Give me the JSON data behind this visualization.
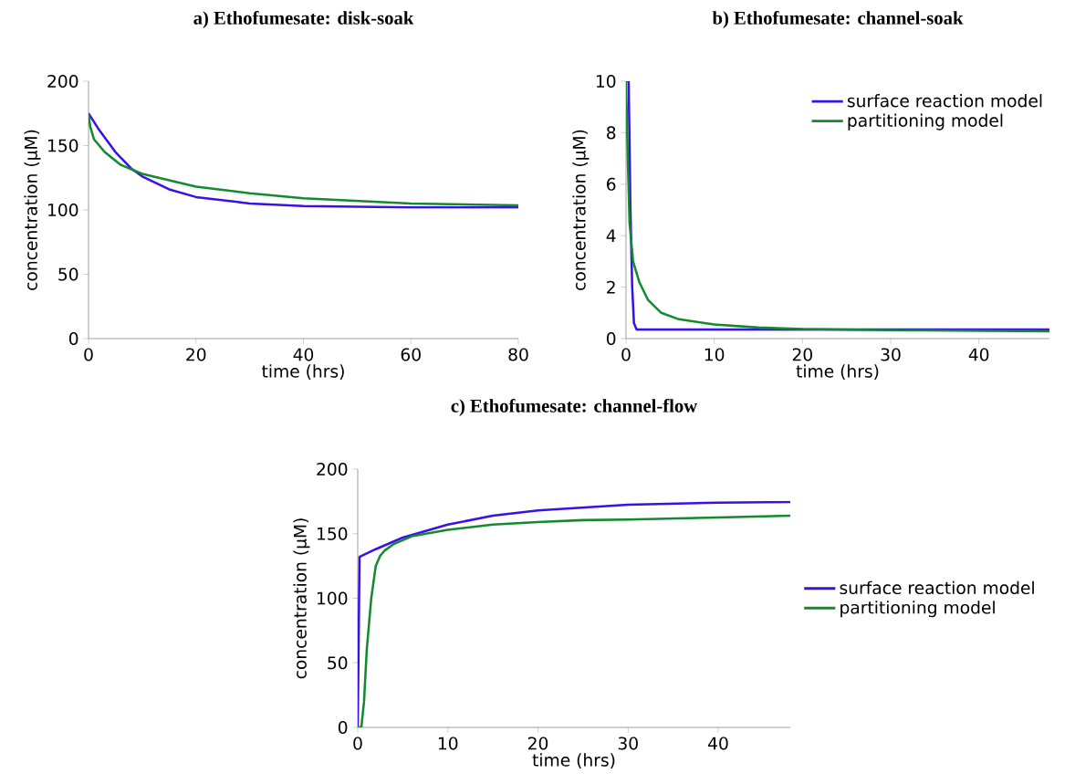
{
  "chart_data": [
    {
      "type": "line",
      "title": "a) Ethofumesate: disk-soak",
      "xlabel": "time (hrs)",
      "ylabel": "concentration (µM)",
      "xlim": [
        0,
        80
      ],
      "ylim": [
        0,
        200
      ],
      "xticks": [
        0,
        20,
        40,
        60,
        80
      ],
      "yticks": [
        0,
        50,
        100,
        150,
        200
      ],
      "legend": false,
      "series": [
        {
          "color": "#3a10e8",
          "x": [
            0,
            2,
            5,
            8,
            10,
            15,
            20,
            30,
            40,
            60,
            80
          ],
          "values": [
            175,
            162,
            145,
            132,
            126,
            116,
            110,
            105,
            103,
            102,
            102
          ]
        },
        {
          "color": "#138a2e",
          "x": [
            0,
            0.3,
            1,
            3,
            6,
            10,
            20,
            30,
            40,
            60,
            80
          ],
          "values": [
            175,
            165,
            155,
            145,
            135,
            128,
            118,
            113,
            109,
            105,
            103.5
          ]
        }
      ]
    },
    {
      "type": "line",
      "title": "b) Ethofumesate: channel-soak",
      "xlabel": "time (hrs)",
      "ylabel": "concentration (µM)",
      "xlim": [
        0,
        48
      ],
      "ylim": [
        0,
        10
      ],
      "xticks": [
        0,
        10,
        20,
        30,
        40
      ],
      "yticks": [
        0,
        2,
        4,
        6,
        8,
        10
      ],
      "legend": "top right",
      "series": [
        {
          "name": "surface reaction model",
          "color": "#3a10e8",
          "x": [
            0,
            0.3,
            0.5,
            0.7,
            0.9,
            1.2,
            48
          ],
          "values": [
            10,
            10,
            5,
            2,
            0.6,
            0.35,
            0.35
          ]
        },
        {
          "name": "partitioning model",
          "color": "#138a2e",
          "x": [
            0,
            0.2,
            0.4,
            0.8,
            1.5,
            2.5,
            4,
            6,
            10,
            15,
            20,
            30,
            48
          ],
          "values": [
            10,
            7,
            4.5,
            3,
            2.2,
            1.5,
            1.0,
            0.75,
            0.55,
            0.43,
            0.37,
            0.33,
            0.28
          ]
        }
      ]
    },
    {
      "type": "line",
      "title": "c) Ethofumesate: channel-flow",
      "xlabel": "time (hrs)",
      "ylabel": "concentration (µM)",
      "xlim": [
        0,
        48
      ],
      "ylim": [
        0,
        200
      ],
      "xticks": [
        0,
        10,
        20,
        30,
        40
      ],
      "yticks": [
        0,
        50,
        100,
        150,
        200
      ],
      "legend": "right",
      "series": [
        {
          "name": "surface reaction model",
          "color": "#3a10e8",
          "x": [
            0,
            0.2,
            2,
            5,
            10,
            15,
            20,
            30,
            40,
            48
          ],
          "values": [
            0,
            132,
            138,
            147,
            157,
            164,
            168,
            172.5,
            174,
            174.5
          ]
        },
        {
          "name": "partitioning model",
          "color": "#138a2e",
          "x": [
            0,
            0.4,
            0.7,
            1,
            1.5,
            2,
            2.5,
            3,
            4,
            6,
            10,
            15,
            20,
            25,
            30,
            40,
            48
          ],
          "values": [
            0,
            0,
            20,
            60,
            100,
            125,
            133,
            137,
            142,
            148,
            153,
            157,
            159,
            160.5,
            161,
            162.5,
            164
          ]
        }
      ]
    }
  ]
}
